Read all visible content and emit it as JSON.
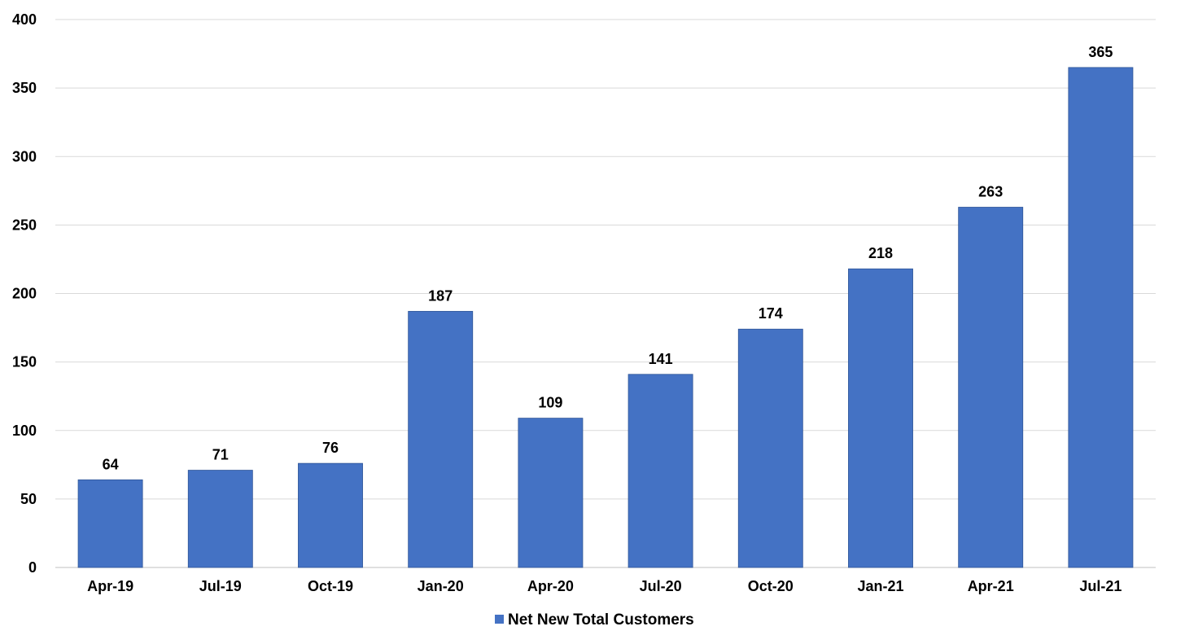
{
  "chart_data": {
    "type": "bar",
    "categories": [
      "Apr-19",
      "Jul-19",
      "Oct-19",
      "Jan-20",
      "Apr-20",
      "Jul-20",
      "Oct-20",
      "Jan-21",
      "Apr-21",
      "Jul-21"
    ],
    "series": [
      {
        "name": "Net New Total Customers",
        "values": [
          64,
          71,
          76,
          187,
          109,
          141,
          174,
          218,
          263,
          365
        ],
        "color": "#4472C4"
      }
    ],
    "title": "",
    "xlabel": "",
    "ylabel": "",
    "ylim": [
      0,
      400
    ],
    "yticks": [
      0,
      50,
      100,
      150,
      200,
      250,
      300,
      350,
      400
    ],
    "grid": true,
    "legend": "bottom-center",
    "data_labels": true
  }
}
